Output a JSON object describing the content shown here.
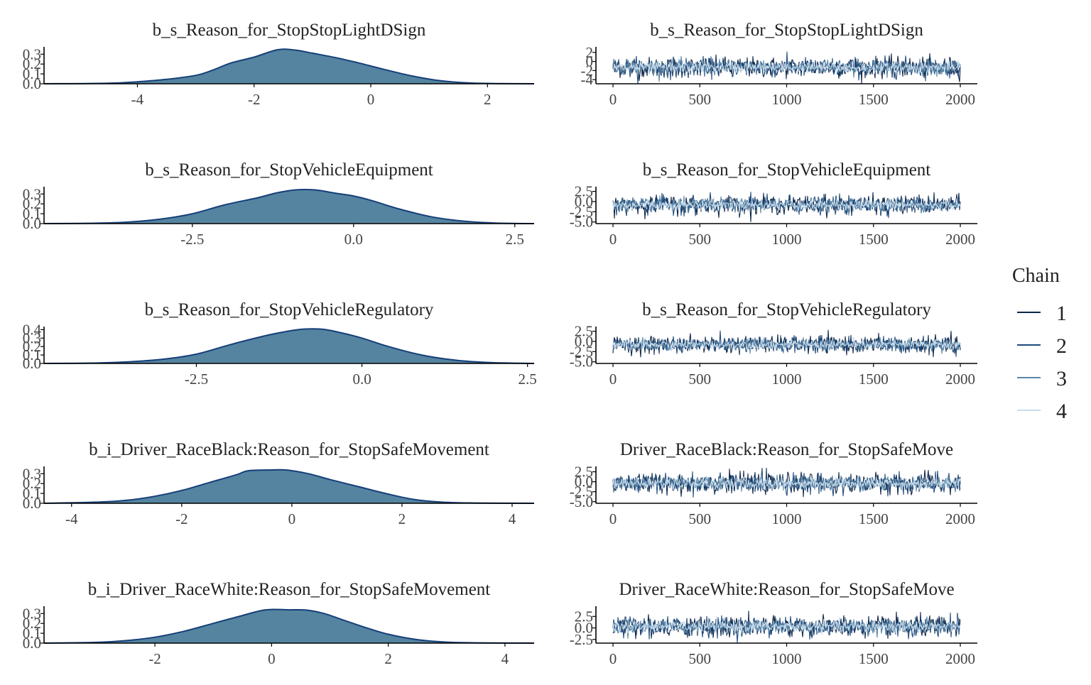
{
  "colors": {
    "density_fill": "#5484a0",
    "density_line": "#163f78",
    "chain_1": "#0d2648",
    "chain_2": "#1f4a7a",
    "chain_3": "#5a86a8",
    "chain_4": "#c7dcec",
    "axis": "#000000"
  },
  "legend": {
    "title": "Chain",
    "labels": [
      "1",
      "2",
      "3",
      "4"
    ]
  },
  "chart_data": [
    {
      "type": "area",
      "title": "b_s_Reason_for_StopStopLightDSign",
      "xlim": [
        -5.6,
        2.8
      ],
      "ylim": [
        0,
        0.36
      ],
      "xticks": [
        -4,
        -2,
        0,
        2
      ],
      "xtick_labels": [
        "-4",
        "-2",
        "0",
        "2"
      ],
      "yticks": [
        0,
        0.1,
        0.2,
        0.3
      ],
      "ytick_labels": [
        "0.0",
        "0.1",
        "0.2",
        "0.3"
      ],
      "x": [
        -5.6,
        -4.5,
        -4.0,
        -3.5,
        -3.0,
        -2.7,
        -2.4,
        -2.0,
        -1.6,
        -1.3,
        -1.0,
        -0.6,
        -0.2,
        0.2,
        0.7,
        1.2,
        1.7,
        2.2,
        2.8
      ],
      "y": [
        0.0,
        0.005,
        0.02,
        0.045,
        0.085,
        0.14,
        0.21,
        0.27,
        0.345,
        0.342,
        0.31,
        0.265,
        0.21,
        0.15,
        0.08,
        0.03,
        0.008,
        0.002,
        0.0
      ]
    },
    {
      "type": "area",
      "title": "b_s_Reason_for_StopVehicleEquipment",
      "xlim": [
        -4.8,
        2.8
      ],
      "ylim": [
        0,
        0.36
      ],
      "xticks": [
        -2.5,
        0.0,
        2.5
      ],
      "xtick_labels": [
        "-2.5",
        "0.0",
        "2.5"
      ],
      "yticks": [
        0,
        0.1,
        0.2,
        0.3
      ],
      "ytick_labels": [
        "0.0",
        "0.1",
        "0.2",
        "0.3"
      ],
      "x": [
        -4.8,
        -4.0,
        -3.5,
        -3.0,
        -2.5,
        -2.0,
        -1.5,
        -1.2,
        -0.9,
        -0.6,
        -0.3,
        0.0,
        0.3,
        0.7,
        1.2,
        1.7,
        2.2,
        2.8
      ],
      "y": [
        0.0,
        0.004,
        0.015,
        0.045,
        0.1,
        0.19,
        0.26,
        0.31,
        0.342,
        0.342,
        0.31,
        0.28,
        0.23,
        0.15,
        0.07,
        0.025,
        0.006,
        0.0
      ]
    },
    {
      "type": "area",
      "title": "b_s_Reason_for_StopVehicleRegulatory",
      "xlim": [
        -4.8,
        2.6
      ],
      "ylim": [
        0,
        0.42
      ],
      "xticks": [
        -2.5,
        0.0,
        2.5
      ],
      "xtick_labels": [
        "-2.5",
        "0.0",
        "2.5"
      ],
      "yticks": [
        0,
        0.1,
        0.2,
        0.3,
        0.4
      ],
      "ytick_labels": [
        "0.0",
        "0.1",
        "0.2",
        "0.3",
        "0.4"
      ],
      "x": [
        -4.8,
        -4.0,
        -3.5,
        -3.0,
        -2.5,
        -2.0,
        -1.5,
        -1.2,
        -0.9,
        -0.6,
        -0.3,
        0.0,
        0.4,
        0.9,
        1.4,
        1.9,
        2.6
      ],
      "y": [
        0.0,
        0.005,
        0.02,
        0.05,
        0.11,
        0.22,
        0.32,
        0.37,
        0.405,
        0.405,
        0.36,
        0.3,
        0.2,
        0.1,
        0.04,
        0.012,
        0.0
      ]
    },
    {
      "type": "area",
      "title": "b_i_Driver_RaceBlack:Reason_for_StopSafeMovement",
      "xlim": [
        -4.5,
        4.4
      ],
      "ylim": [
        0,
        0.36
      ],
      "xticks": [
        -4,
        -2,
        0,
        2,
        4
      ],
      "xtick_labels": [
        "-4",
        "-2",
        "0",
        "2",
        "4"
      ],
      "yticks": [
        0,
        0.1,
        0.2,
        0.3
      ],
      "ytick_labels": [
        "0.0",
        "0.1",
        "0.2",
        "0.3"
      ],
      "x": [
        -4.5,
        -3.5,
        -3.0,
        -2.5,
        -2.0,
        -1.5,
        -1.0,
        -0.8,
        -0.4,
        -0.1,
        0.3,
        0.7,
        1.2,
        1.7,
        2.2,
        2.7,
        3.3,
        4.4
      ],
      "y": [
        0.0,
        0.012,
        0.03,
        0.07,
        0.13,
        0.21,
        0.29,
        0.33,
        0.338,
        0.338,
        0.3,
        0.24,
        0.17,
        0.1,
        0.04,
        0.012,
        0.003,
        0.0
      ]
    },
    {
      "type": "area",
      "title": "b_i_Driver_RaceWhite:Reason_for_StopSafeMovement",
      "xlim": [
        -3.9,
        4.5
      ],
      "ylim": [
        0,
        0.36
      ],
      "xticks": [
        -2,
        0,
        2,
        4
      ],
      "xtick_labels": [
        "-2",
        "0",
        "2",
        "4"
      ],
      "yticks": [
        0,
        0.1,
        0.2,
        0.3
      ],
      "ytick_labels": [
        "0.0",
        "0.1",
        "0.2",
        "0.3"
      ],
      "x": [
        -3.9,
        -3.0,
        -2.5,
        -2.0,
        -1.5,
        -1.0,
        -0.5,
        -0.1,
        0.3,
        0.6,
        0.9,
        1.2,
        1.6,
        2.0,
        2.5,
        3.0,
        3.5,
        4.5
      ],
      "y": [
        0.0,
        0.008,
        0.025,
        0.06,
        0.12,
        0.2,
        0.28,
        0.338,
        0.338,
        0.335,
        0.3,
        0.24,
        0.16,
        0.09,
        0.035,
        0.01,
        0.003,
        0.0
      ]
    },
    {
      "type": "line",
      "title": "b_s_Reason_for_StopStopLightDSign",
      "xlim": [
        -100,
        2100
      ],
      "ylim": [
        -4.9,
        2.9
      ],
      "xticks": [
        0,
        500,
        1000,
        1500,
        2000
      ],
      "xtick_labels": [
        "0",
        "500",
        "1000",
        "1500",
        "2000"
      ],
      "yticks": [
        2,
        0,
        -2,
        -4
      ],
      "ytick_labels": [
        "2",
        "0",
        "-2",
        "-4"
      ],
      "trace_center": -1.3,
      "trace_sd": 1.1,
      "iterations": 2000,
      "series": [
        {
          "name": "1"
        },
        {
          "name": "2"
        },
        {
          "name": "3"
        },
        {
          "name": "4"
        }
      ]
    },
    {
      "type": "line",
      "title": "b_s_Reason_for_StopVehicleEquipment",
      "xlim": [
        -100,
        2100
      ],
      "ylim": [
        -5.4,
        3.3
      ],
      "xticks": [
        0,
        500,
        1000,
        1500,
        2000
      ],
      "xtick_labels": [
        "0",
        "500",
        "1000",
        "1500",
        "2000"
      ],
      "yticks": [
        2.5,
        0.0,
        -2.5,
        -5.0
      ],
      "ytick_labels": [
        "2.5",
        "0.0",
        "-2.5",
        "-5.0"
      ],
      "trace_center": -0.8,
      "trace_sd": 1.1,
      "iterations": 2000,
      "series": [
        {
          "name": "1"
        },
        {
          "name": "2"
        },
        {
          "name": "3"
        },
        {
          "name": "4"
        }
      ]
    },
    {
      "type": "line",
      "title": "b_s_Reason_for_StopVehicleRegulatory",
      "xlim": [
        -100,
        2100
      ],
      "ylim": [
        -5.4,
        3.3
      ],
      "xticks": [
        0,
        500,
        1000,
        1500,
        2000
      ],
      "xtick_labels": [
        "0",
        "500",
        "1000",
        "1500",
        "2000"
      ],
      "yticks": [
        2.5,
        0.0,
        -2.5,
        -5.0
      ],
      "ytick_labels": [
        "2.5",
        "0.0",
        "-2.5",
        "-5.0"
      ],
      "trace_center": -0.8,
      "trace_sd": 1.0,
      "iterations": 2000,
      "series": [
        {
          "name": "1"
        },
        {
          "name": "2"
        },
        {
          "name": "3"
        },
        {
          "name": "4"
        }
      ]
    },
    {
      "type": "line",
      "title": "Driver_RaceBlack:Reason_for_StopSafeMove",
      "xlim": [
        -100,
        2100
      ],
      "ylim": [
        -5.4,
        3.5
      ],
      "xticks": [
        0,
        500,
        1000,
        1500,
        2000
      ],
      "xtick_labels": [
        "0",
        "500",
        "1000",
        "1500",
        "2000"
      ],
      "yticks": [
        2.5,
        0.0,
        -2.5,
        -5.0
      ],
      "ytick_labels": [
        "2.5",
        "0.0",
        "-2.5",
        "-5.0"
      ],
      "trace_center": -0.4,
      "trace_sd": 1.2,
      "iterations": 2000,
      "series": [
        {
          "name": "1"
        },
        {
          "name": "2"
        },
        {
          "name": "3"
        },
        {
          "name": "4"
        }
      ]
    },
    {
      "type": "line",
      "title": "Driver_RaceWhite:Reason_for_StopSafeMove",
      "xlim": [
        -100,
        2100
      ],
      "ylim": [
        -3.3,
        4.4
      ],
      "xticks": [
        0,
        500,
        1000,
        1500,
        2000
      ],
      "xtick_labels": [
        "0",
        "500",
        "1000",
        "1500",
        "2000"
      ],
      "yticks": [
        2.5,
        0.0,
        -2.5
      ],
      "ytick_labels": [
        "2.5",
        "0.0",
        "-2.5"
      ],
      "trace_center": 0.3,
      "trace_sd": 1.1,
      "iterations": 2000,
      "series": [
        {
          "name": "1"
        },
        {
          "name": "2"
        },
        {
          "name": "3"
        },
        {
          "name": "4"
        }
      ]
    }
  ]
}
